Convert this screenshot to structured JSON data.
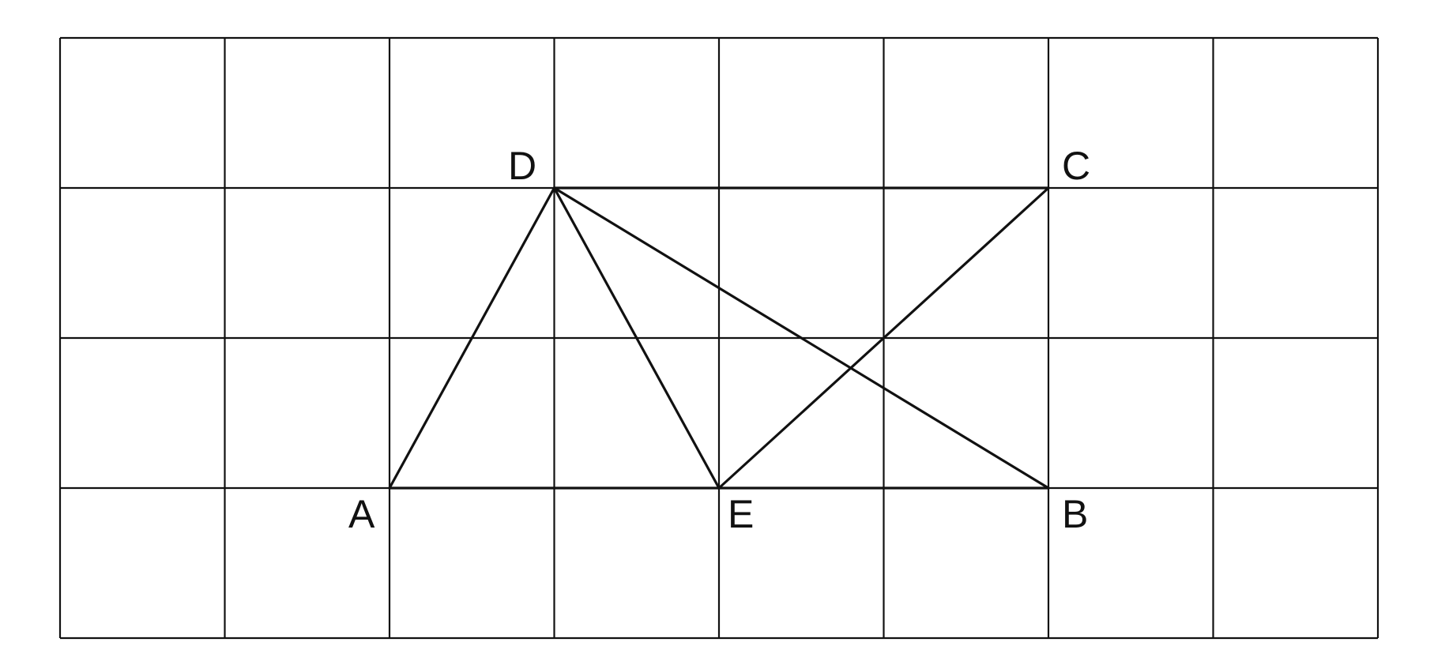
{
  "diagram": {
    "grid": {
      "columns": 8,
      "rows": 4
    },
    "colors": {
      "line": "#111111",
      "background": "#ffffff"
    },
    "points": [
      {
        "name": "A",
        "col": 2,
        "row": 3
      },
      {
        "name": "B",
        "col": 6,
        "row": 3
      },
      {
        "name": "C",
        "col": 6,
        "row": 1
      },
      {
        "name": "D",
        "col": 3,
        "row": 1
      },
      {
        "name": "E",
        "col": 4,
        "row": 3
      }
    ],
    "segments": [
      [
        "A",
        "B"
      ],
      [
        "D",
        "C"
      ],
      [
        "A",
        "D"
      ],
      [
        "D",
        "E"
      ],
      [
        "D",
        "B"
      ],
      [
        "E",
        "C"
      ]
    ],
    "labels": {
      "A": "A",
      "B": "B",
      "C": "C",
      "D": "D",
      "E": "E"
    }
  }
}
